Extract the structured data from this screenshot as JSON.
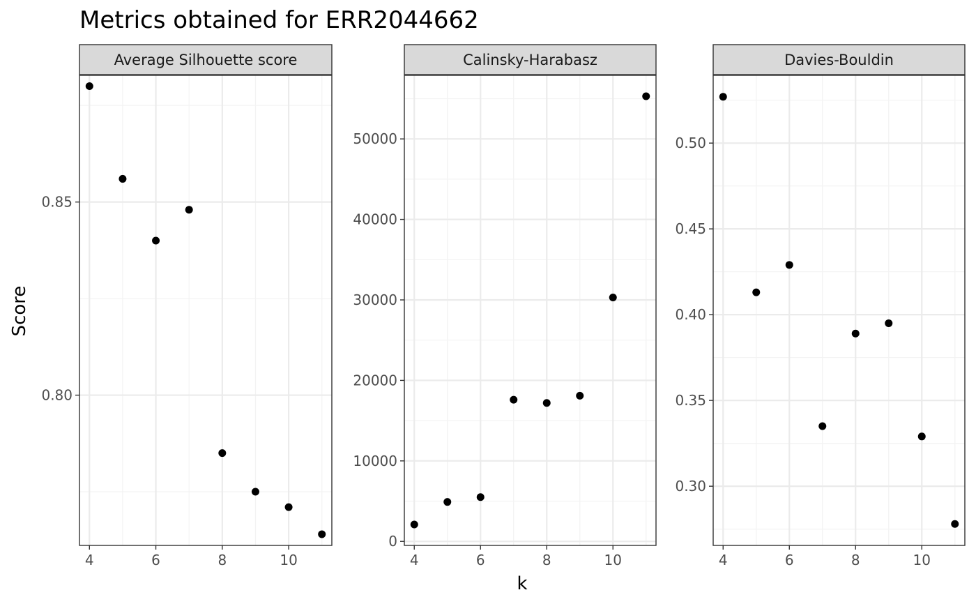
{
  "title": "Metrics obtained for  ERR2044662",
  "xlabel": "k",
  "ylabel": "Score",
  "chart_data": [
    {
      "type": "scatter",
      "panel": "Average Silhouette score",
      "x": [
        4,
        5,
        6,
        7,
        8,
        9,
        10,
        11
      ],
      "y": [
        0.88,
        0.856,
        0.84,
        0.848,
        0.785,
        0.775,
        0.771,
        0.764
      ],
      "xlim": [
        3.7,
        11.3
      ],
      "ylim": [
        0.7611,
        0.8828
      ],
      "xticks": [
        4,
        6,
        8,
        10
      ],
      "xtick_labels": [
        "4",
        "6",
        "8",
        "10"
      ],
      "yticks": [
        0.8,
        0.85
      ],
      "ytick_labels": [
        "0.80",
        "0.85"
      ],
      "grid": true
    },
    {
      "type": "scatter",
      "panel": "Calinsky-Harabasz",
      "x": [
        4,
        5,
        6,
        7,
        8,
        9,
        10,
        11
      ],
      "y": [
        2100,
        4900,
        5500,
        17600,
        17200,
        18100,
        30300,
        55300
      ],
      "xlim": [
        3.7,
        11.3
      ],
      "ylim": [
        -500,
        57900
      ],
      "xticks": [
        4,
        6,
        8,
        10
      ],
      "xtick_labels": [
        "4",
        "6",
        "8",
        "10"
      ],
      "yticks": [
        0,
        10000,
        20000,
        30000,
        40000,
        50000
      ],
      "ytick_labels": [
        "0",
        "10000",
        "20000",
        "30000",
        "40000",
        "50000"
      ],
      "grid": true
    },
    {
      "type": "scatter",
      "panel": "Davies-Bouldin",
      "x": [
        4,
        5,
        6,
        7,
        8,
        9,
        10,
        11
      ],
      "y": [
        0.527,
        0.413,
        0.429,
        0.335,
        0.389,
        0.395,
        0.329,
        0.278
      ],
      "xlim": [
        3.7,
        11.3
      ],
      "ylim": [
        0.2655,
        0.5395
      ],
      "xticks": [
        4,
        6,
        8,
        10
      ],
      "xtick_labels": [
        "4",
        "6",
        "8",
        "10"
      ],
      "yticks": [
        0.3,
        0.35,
        0.4,
        0.45,
        0.5
      ],
      "ytick_labels": [
        "0.30",
        "0.35",
        "0.40",
        "0.45",
        "0.50"
      ],
      "grid": true
    }
  ],
  "colors": {
    "point": "#000000",
    "strip_fill": "#d9d9d9",
    "panel_border": "#333333",
    "grid_major": "#ebebeb",
    "grid_minor": "#f3f3f3"
  }
}
